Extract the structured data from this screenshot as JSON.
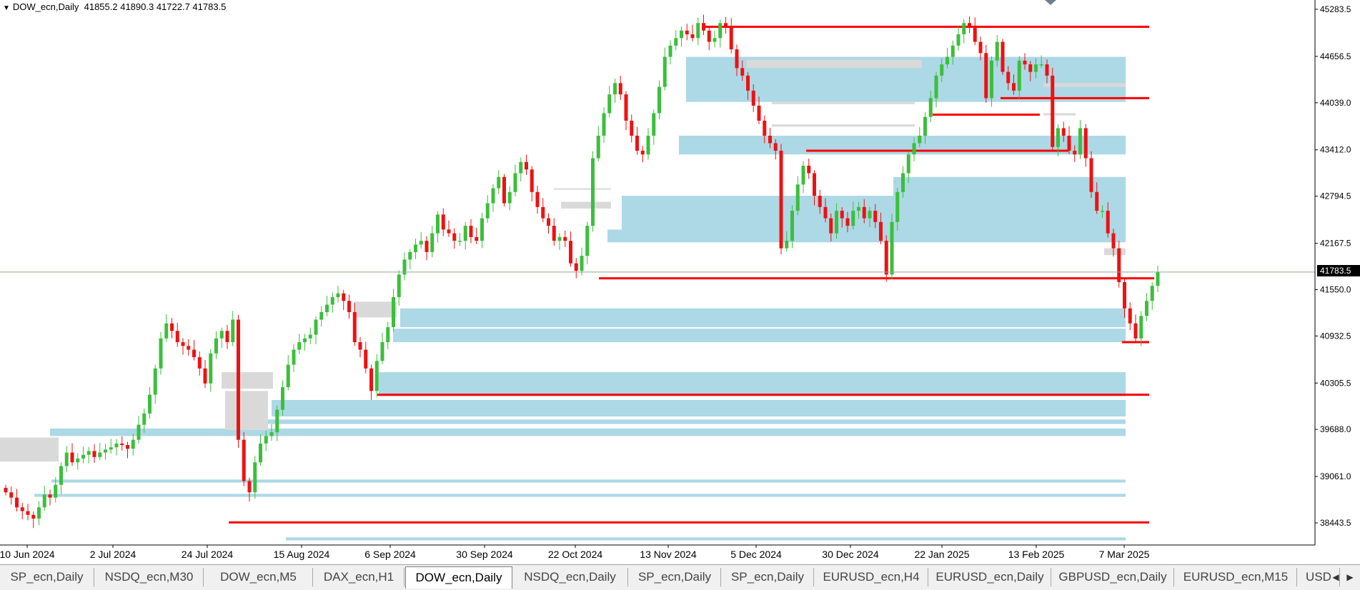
{
  "header": {
    "symbol": "DOW_ecn,Daily",
    "ohlc": "41855.2 41890.3 41722.7 41783.5"
  },
  "price_tag": "41783.5",
  "chart_data": {
    "type": "candlestick",
    "symbol": "DOW_ecn",
    "timeframe": "Daily",
    "ylim": [
      38100,
      45450
    ],
    "y_ticks": [
      "45283.5",
      "44656.5",
      "44039.0",
      "43412.0",
      "42794.5",
      "42167.5",
      "41550.0",
      "40932.5",
      "40305.5",
      "39688.0",
      "39061.0",
      "38443.5"
    ],
    "x_ticks": [
      "10 Jun 2024",
      "2 Jul 2024",
      "24 Jul 2024",
      "15 Aug 2024",
      "6 Sep 2024",
      "30 Sep 2024",
      "22 Oct 2024",
      "13 Nov 2024",
      "5 Dec 2024",
      "30 Dec 2024",
      "22 Jan 2025",
      "13 Feb 2025",
      "7 Mar 2025"
    ],
    "last_price": 41783.5,
    "closes": [
      38850,
      38780,
      38650,
      38600,
      38550,
      38500,
      38650,
      38820,
      38780,
      38950,
      39200,
      39380,
      39250,
      39300,
      39350,
      39400,
      39320,
      39380,
      39420,
      39450,
      39500,
      39480,
      39430,
      39550,
      39750,
      39900,
      40150,
      40500,
      40900,
      41100,
      41000,
      40850,
      40800,
      40750,
      40650,
      40500,
      40300,
      40700,
      40900,
      41000,
      40850,
      41150,
      39550,
      39000,
      38850,
      39250,
      39500,
      39600,
      39650,
      39950,
      40250,
      40550,
      40750,
      40850,
      40900,
      40950,
      41150,
      41250,
      41350,
      41450,
      41500,
      41400,
      41250,
      40850,
      40750,
      40500,
      40200,
      40600,
      40850,
      41050,
      41450,
      41750,
      41950,
      42050,
      42150,
      42200,
      42050,
      42300,
      42550,
      42350,
      42300,
      42200,
      42200,
      42400,
      42250,
      42200,
      42500,
      42700,
      42900,
      43050,
      42700,
      42850,
      43100,
      43250,
      43150,
      42850,
      42650,
      42500,
      42400,
      42200,
      42250,
      42200,
      41900,
      41800,
      42000,
      42400,
      43300,
      43600,
      43900,
      44150,
      44300,
      44150,
      43800,
      43600,
      43400,
      43350,
      43600,
      43900,
      44250,
      44650,
      44800,
      44900,
      45000,
      44950,
      44900,
      45100,
      45000,
      44850,
      44900,
      45100,
      45050,
      44750,
      44500,
      44400,
      44200,
      44000,
      43800,
      43600,
      43500,
      43400,
      42100,
      42200,
      42600,
      42950,
      43200,
      43100,
      42800,
      42650,
      42500,
      42300,
      42600,
      42500,
      42400,
      42600,
      42650,
      42500,
      42600,
      42450,
      42200,
      41750,
      42450,
      42850,
      43100,
      43350,
      43500,
      43600,
      43850,
      44100,
      44400,
      44550,
      44650,
      44800,
      44950,
      45100,
      45050,
      44850,
      44700,
      44100,
      44600,
      44850,
      44450,
      44300,
      44200,
      44600,
      44550,
      44450,
      44550,
      44550,
      44400,
      43450,
      43700,
      43600,
      43400,
      43350,
      43700,
      43300,
      42850,
      42600,
      42600,
      42300,
      42100,
      41650,
      41300,
      41100,
      40900,
      41200,
      41400,
      41600,
      41783.5
    ],
    "price_levels_red": [
      45050,
      44100,
      43880,
      43400,
      41700,
      40850,
      40150,
      38450
    ],
    "zones_blue": [
      {
        "from": 44650,
        "to": 44050
      },
      {
        "from": 43600,
        "to": 43350
      },
      {
        "from": 42800,
        "to": 42280
      },
      {
        "from": 43050,
        "to": 42600
      },
      {
        "from": 42500,
        "to": 42350
      },
      {
        "from": 42350,
        "to": 42180
      },
      {
        "from": 41300,
        "to": 41050
      },
      {
        "from": 41030,
        "to": 40850
      },
      {
        "from": 40450,
        "to": 40130
      },
      {
        "from": 40080,
        "to": 39860
      },
      {
        "from": 39820,
        "to": 39760
      },
      {
        "from": 39700,
        "to": 39600
      },
      {
        "from": 39020,
        "to": 38980
      },
      {
        "from": 38830,
        "to": 38790
      },
      {
        "from": 38250,
        "to": 38210
      }
    ],
    "zones_grey": [
      {
        "from": 44610,
        "to": 44500
      },
      {
        "from": 44300,
        "to": 44250
      },
      {
        "from": 44050,
        "to": 44020
      },
      {
        "from": 43900,
        "to": 43870
      },
      {
        "from": 43750,
        "to": 43720
      },
      {
        "from": 42900,
        "to": 42880
      },
      {
        "from": 42720,
        "to": 42630
      },
      {
        "from": 42100,
        "to": 42010
      },
      {
        "from": 41390,
        "to": 41180
      },
      {
        "from": 40450,
        "to": 40230
      },
      {
        "from": 40200,
        "to": 39680
      },
      {
        "from": 39580,
        "to": 39260
      }
    ]
  },
  "tabs": [
    {
      "label": "SP_ecn,Daily",
      "active": false
    },
    {
      "label": "NSDQ_ecn,M30",
      "active": false
    },
    {
      "label": "DOW_ecn,M5",
      "active": false
    },
    {
      "label": "DAX_ecn,H1",
      "active": false
    },
    {
      "label": "DOW_ecn,Daily",
      "active": true
    },
    {
      "label": "NSDQ_ecn,Daily",
      "active": false
    },
    {
      "label": "SP_ecn,Daily",
      "active": false
    },
    {
      "label": "SP_ecn,Daily",
      "active": false
    },
    {
      "label": "EURUSD_ecn,H4",
      "active": false
    },
    {
      "label": "EURUSD_ecn,Daily",
      "active": false
    },
    {
      "label": "GBPUSD_ecn,Daily",
      "active": false
    },
    {
      "label": "EURUSD_ecn,M15",
      "active": false
    },
    {
      "label": "USD",
      "active": false
    }
  ],
  "colors": {
    "bull": "#3bbf3b",
    "bear": "#ee1111",
    "level": "#ff0000",
    "zone_blue": "#add8e6",
    "zone_grey": "#d9d9d9",
    "grid_axis": "#000000",
    "price_line": "#8fa88f"
  }
}
